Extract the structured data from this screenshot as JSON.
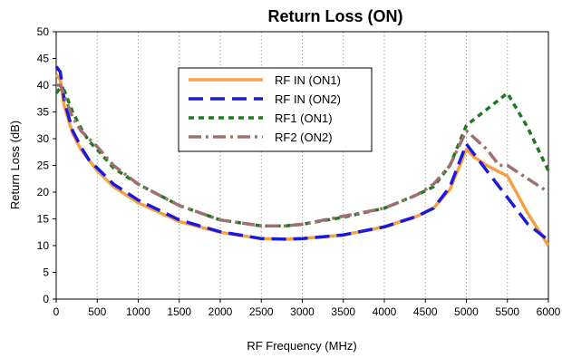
{
  "chart_data": {
    "type": "line",
    "title": "Return Loss (ON)",
    "xlabel": "RF Frequency (MHz)",
    "ylabel": "Return Loss (dB)",
    "xlim": [
      0,
      6000
    ],
    "ylim": [
      0,
      50
    ],
    "x_ticks": [
      0,
      500,
      1000,
      1500,
      2000,
      2500,
      3000,
      3500,
      4000,
      4500,
      5000,
      5500,
      6000
    ],
    "y_ticks": [
      0,
      5,
      10,
      15,
      20,
      25,
      30,
      35,
      40,
      45,
      50
    ],
    "grid": "vertical-dashed",
    "legend_position": "upper-middle",
    "series": [
      {
        "name": "RF IN (ON1)",
        "color": "#f7a043",
        "style": "solid",
        "x": [
          0,
          50,
          100,
          200,
          300,
          400,
          500,
          700,
          1000,
          1500,
          2000,
          2500,
          2800,
          3000,
          3500,
          4000,
          4400,
          4600,
          4800,
          5000,
          5100,
          5250,
          5500,
          5750,
          6000
        ],
        "y": [
          42,
          41,
          36,
          31,
          28,
          26,
          24,
          21,
          18,
          14.5,
          12.5,
          11.3,
          11.2,
          11.3,
          12,
          13.5,
          15.5,
          17,
          20.5,
          28,
          26.5,
          25,
          23,
          16,
          10
        ]
      },
      {
        "name": "RF IN (ON2)",
        "color": "#1a1adb",
        "style": "long-dash",
        "x": [
          0,
          50,
          100,
          200,
          300,
          400,
          500,
          700,
          1000,
          1500,
          2000,
          2500,
          2800,
          3000,
          3500,
          4000,
          4400,
          4600,
          4800,
          5000,
          5250,
          5500,
          5750,
          6000
        ],
        "y": [
          43.5,
          42.5,
          37,
          31.5,
          28.5,
          26,
          24.5,
          21.5,
          18.5,
          14.8,
          12.6,
          11.3,
          11.2,
          11.3,
          12,
          13.5,
          15.5,
          17,
          21,
          29,
          24,
          19,
          14,
          11
        ]
      },
      {
        "name": "RF1 (ON1)",
        "color": "#1f7a1f",
        "style": "short-dash",
        "x": [
          0,
          50,
          100,
          200,
          300,
          400,
          500,
          700,
          1000,
          1500,
          2000,
          2500,
          2800,
          3000,
          3500,
          4000,
          4400,
          4600,
          4800,
          5000,
          5250,
          5500,
          5750,
          6000
        ],
        "y": [
          38.5,
          39.5,
          39,
          35,
          32,
          29.5,
          28,
          24.5,
          21.5,
          17.5,
          14.8,
          13.7,
          13.7,
          14,
          15.3,
          17,
          19.5,
          21,
          25,
          32.5,
          35.5,
          38.5,
          32,
          24
        ]
      },
      {
        "name": "RF2 (ON2)",
        "color": "#a07070",
        "style": "dash-dot",
        "x": [
          0,
          50,
          100,
          200,
          300,
          400,
          500,
          700,
          1000,
          1500,
          2000,
          2500,
          2800,
          3000,
          3500,
          4000,
          4400,
          4600,
          4800,
          5000,
          5250,
          5400,
          5500,
          5750,
          6000
        ],
        "y": [
          40,
          40,
          38,
          34,
          31.5,
          30,
          28.5,
          25,
          21.5,
          17.5,
          14.8,
          13.7,
          13.7,
          14,
          15.5,
          17,
          19.5,
          21.5,
          25,
          31.5,
          28,
          25,
          25,
          22.5,
          20
        ]
      }
    ]
  }
}
